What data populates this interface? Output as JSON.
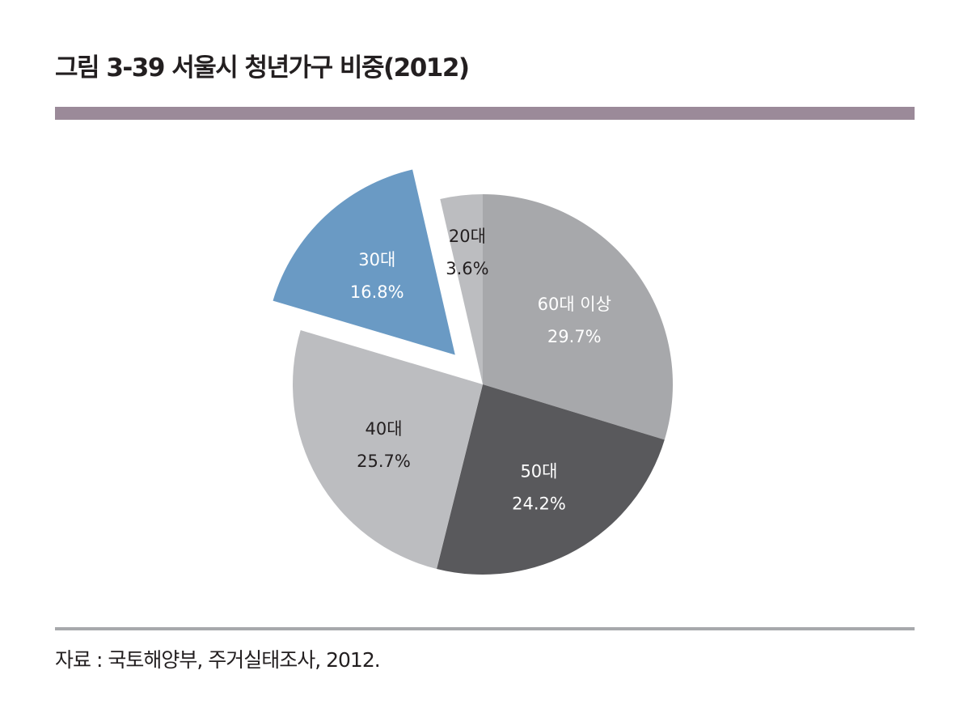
{
  "figure": {
    "title": "그림 3-39 서울시 청년가구 비중(2012)",
    "source": "자료 : 국토해양부, 주거실태조사, 2012.",
    "colors": {
      "title_bar": "#9b8a99",
      "bottom_rule": "#a7a9ac"
    }
  },
  "chart_data": {
    "type": "pie",
    "title": "그림 3-39 서울시 청년가구 비중(2012)",
    "unit": "%",
    "start_angle_deg": 0,
    "direction": "clockwise",
    "slices": [
      {
        "label": "60대 이상",
        "value": 29.7,
        "value_label": "29.7%",
        "color": "#a7a8ab",
        "text_color": "#ffffff",
        "exploded": false
      },
      {
        "label": "50대",
        "value": 24.2,
        "value_label": "24.2%",
        "color": "#59595c",
        "text_color": "#ffffff",
        "exploded": false
      },
      {
        "label": "40대",
        "value": 25.7,
        "value_label": "25.7%",
        "color": "#bcbdc0",
        "text_color": "#231f20",
        "exploded": false
      },
      {
        "label": "30대",
        "value": 16.8,
        "value_label": "16.8%",
        "color": "#6a9ac4",
        "text_color": "#ffffff",
        "exploded": true
      },
      {
        "label": "20대",
        "value": 3.6,
        "value_label": "3.6%",
        "color": "#bcbdc0",
        "text_color": "#231f20",
        "exploded": false
      }
    ],
    "legend": null,
    "source": "자료 : 국토해양부, 주거실태조사, 2012."
  }
}
